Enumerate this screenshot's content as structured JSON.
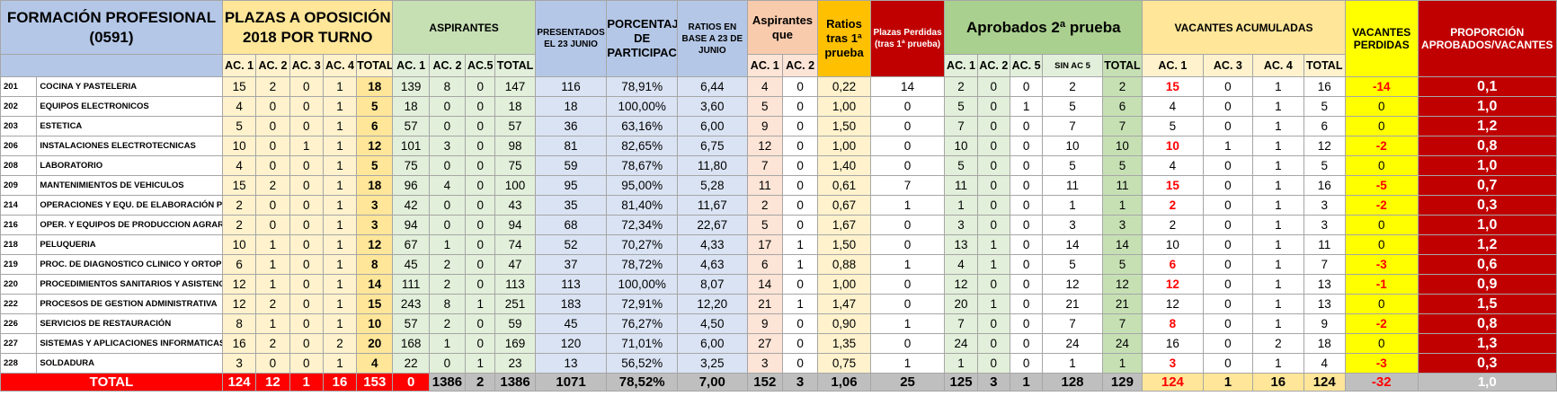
{
  "headers": {
    "formacion": "FORMACIÓN PROFESIONAL",
    "codigo": "(0591)",
    "plazas": "PLAZAS A OPOSICIÓN 2018 POR TURNO",
    "aspirantes": "ASPIRANTES",
    "presentados": "PRESENTADOS EL 23 JUNIO",
    "porcentaje": "PORCENTAJE DE PARTICIPACIÓN",
    "ratios_base": "RATIOS EN BASE A 23 DE JUNIO",
    "aspirantes_que": "Aspirantes que",
    "ratios_tras": "Ratios tras 1ª prueba",
    "plazas_perdidas": "Plazas Perdidas (tras 1ª prueba)",
    "aprobados": "Aprobados 2ª prueba",
    "vacantes_acum": "VACANTES ACUMULADAS",
    "vacantes_perdidas": "VACANTES PERDIDAS",
    "proporcion": "PROPORCIÓN APROBADOS/VACANTES",
    "sub_plazas": [
      "AC. 1",
      "AC. 2",
      "AC. 3",
      "AC. 4",
      "TOTAL"
    ],
    "sub_aspirantes": [
      "AC. 1",
      "AC. 2",
      "AC.5",
      "TOTAL"
    ],
    "sub_asp_que": [
      "AC. 1",
      "AC. 2"
    ],
    "sub_aprobados": [
      "AC. 1",
      "AC. 2",
      "AC. 5",
      "SIN AC 5",
      "TOTAL"
    ],
    "sub_vacantes": [
      "AC. 1",
      "AC. 3",
      "AC. 4",
      "TOTAL"
    ]
  },
  "rows": [
    [
      "201",
      "COCINA Y PASTELERIA",
      "15",
      "2",
      "0",
      "1",
      "18",
      "139",
      "8",
      "0",
      "147",
      "116",
      "78,91%",
      "6,44",
      "4",
      "0",
      "0,22",
      "14",
      "2",
      "0",
      "0",
      "2",
      "2",
      "15",
      "0",
      "1",
      "16",
      "-14",
      "0,1"
    ],
    [
      "202",
      "EQUIPOS ELECTRONICOS",
      "4",
      "0",
      "0",
      "1",
      "5",
      "18",
      "0",
      "0",
      "18",
      "18",
      "100,00%",
      "3,60",
      "5",
      "0",
      "1,00",
      "0",
      "5",
      "0",
      "1",
      "5",
      "6",
      "4",
      "0",
      "1",
      "5",
      "0",
      "1,0"
    ],
    [
      "203",
      "ESTETICA",
      "5",
      "0",
      "0",
      "1",
      "6",
      "57",
      "0",
      "0",
      "57",
      "36",
      "63,16%",
      "6,00",
      "9",
      "0",
      "1,50",
      "0",
      "7",
      "0",
      "0",
      "7",
      "7",
      "5",
      "0",
      "1",
      "6",
      "0",
      "1,2"
    ],
    [
      "206",
      "INSTALACIONES ELECTROTECNICAS",
      "10",
      "0",
      "1",
      "1",
      "12",
      "101",
      "3",
      "0",
      "98",
      "81",
      "82,65%",
      "6,75",
      "12",
      "0",
      "1,00",
      "0",
      "10",
      "0",
      "0",
      "10",
      "10",
      "10",
      "1",
      "1",
      "12",
      "-2",
      "0,8"
    ],
    [
      "208",
      "LABORATORIO",
      "4",
      "0",
      "0",
      "1",
      "5",
      "75",
      "0",
      "0",
      "75",
      "59",
      "78,67%",
      "11,80",
      "7",
      "0",
      "1,40",
      "0",
      "5",
      "0",
      "0",
      "5",
      "5",
      "4",
      "0",
      "1",
      "5",
      "0",
      "1,0"
    ],
    [
      "209",
      "MANTENIMIENTOS DE VEHICULOS",
      "15",
      "2",
      "0",
      "1",
      "18",
      "96",
      "4",
      "0",
      "100",
      "95",
      "95,00%",
      "5,28",
      "11",
      "0",
      "0,61",
      "7",
      "11",
      "0",
      "0",
      "11",
      "11",
      "15",
      "0",
      "1",
      "16",
      "-5",
      "0,7"
    ],
    [
      "214",
      "OPERACIONES Y EQU. DE ELABORACIÓN PROD. AL",
      "2",
      "0",
      "0",
      "1",
      "3",
      "42",
      "0",
      "0",
      "43",
      "35",
      "81,40%",
      "11,67",
      "2",
      "0",
      "0,67",
      "1",
      "1",
      "0",
      "0",
      "1",
      "1",
      "2",
      "0",
      "1",
      "3",
      "-2",
      "0,3"
    ],
    [
      "216",
      "OPER. Y EQUIPOS DE PRODUCCION AGRARIA",
      "2",
      "0",
      "0",
      "1",
      "3",
      "94",
      "0",
      "0",
      "94",
      "68",
      "72,34%",
      "22,67",
      "5",
      "0",
      "1,67",
      "0",
      "3",
      "0",
      "0",
      "3",
      "3",
      "2",
      "0",
      "1",
      "3",
      "0",
      "1,0"
    ],
    [
      "218",
      "PELUQUERIA",
      "10",
      "1",
      "0",
      "1",
      "12",
      "67",
      "1",
      "0",
      "74",
      "52",
      "70,27%",
      "4,33",
      "17",
      "1",
      "1,50",
      "0",
      "13",
      "1",
      "0",
      "14",
      "14",
      "10",
      "0",
      "1",
      "11",
      "0",
      "1,2"
    ],
    [
      "219",
      "PROC. DE DIAGNOSTICO CLINICO Y ORTOPROTESIC",
      "6",
      "1",
      "0",
      "1",
      "8",
      "45",
      "2",
      "0",
      "47",
      "37",
      "78,72%",
      "4,63",
      "6",
      "1",
      "0,88",
      "1",
      "4",
      "1",
      "0",
      "5",
      "5",
      "6",
      "0",
      "1",
      "7",
      "-3",
      "0,6"
    ],
    [
      "220",
      "PROCEDIMIENTOS SANITARIOS Y ASISTENCIALES",
      "12",
      "1",
      "0",
      "1",
      "14",
      "111",
      "2",
      "0",
      "113",
      "113",
      "100,00%",
      "8,07",
      "14",
      "0",
      "1,00",
      "0",
      "12",
      "0",
      "0",
      "12",
      "12",
      "12",
      "0",
      "1",
      "13",
      "-1",
      "0,9"
    ],
    [
      "222",
      "PROCESOS DE GESTION ADMINISTRATIVA",
      "12",
      "2",
      "0",
      "1",
      "15",
      "243",
      "8",
      "1",
      "251",
      "183",
      "72,91%",
      "12,20",
      "21",
      "1",
      "1,47",
      "0",
      "20",
      "1",
      "0",
      "21",
      "21",
      "12",
      "0",
      "1",
      "13",
      "0",
      "1,5"
    ],
    [
      "226",
      "SERVICIOS DE RESTAURACIÓN",
      "8",
      "1",
      "0",
      "1",
      "10",
      "57",
      "2",
      "0",
      "59",
      "45",
      "76,27%",
      "4,50",
      "9",
      "0",
      "0,90",
      "1",
      "7",
      "0",
      "0",
      "7",
      "7",
      "8",
      "0",
      "1",
      "9",
      "-2",
      "0,8"
    ],
    [
      "227",
      "SISTEMAS Y APLICACIONES INFORMATICAS",
      "16",
      "2",
      "0",
      "2",
      "20",
      "168",
      "1",
      "0",
      "169",
      "120",
      "71,01%",
      "6,00",
      "27",
      "0",
      "1,35",
      "0",
      "24",
      "0",
      "0",
      "24",
      "24",
      "16",
      "0",
      "2",
      "18",
      "0",
      "1,3"
    ],
    [
      "228",
      "SOLDADURA",
      "3",
      "0",
      "0",
      "1",
      "4",
      "22",
      "0",
      "1",
      "23",
      "13",
      "56,52%",
      "3,25",
      "3",
      "0",
      "0,75",
      "1",
      "1",
      "0",
      "0",
      "1",
      "1",
      "3",
      "0",
      "1",
      "4",
      "-3",
      "0,3"
    ]
  ],
  "red_ac1_rows": [
    0,
    3,
    5,
    6,
    9,
    10,
    12,
    14
  ],
  "total": {
    "label": "TOTAL",
    "values": [
      "124",
      "12",
      "1",
      "16",
      "153",
      "0",
      "1386",
      "2",
      "1386",
      "1071",
      "78,52%",
      "7,00",
      "152",
      "3",
      "1,06",
      "25",
      "125",
      "3",
      "1",
      "128",
      "129",
      "124",
      "1",
      "16",
      "124",
      "-32",
      "1,0"
    ]
  }
}
